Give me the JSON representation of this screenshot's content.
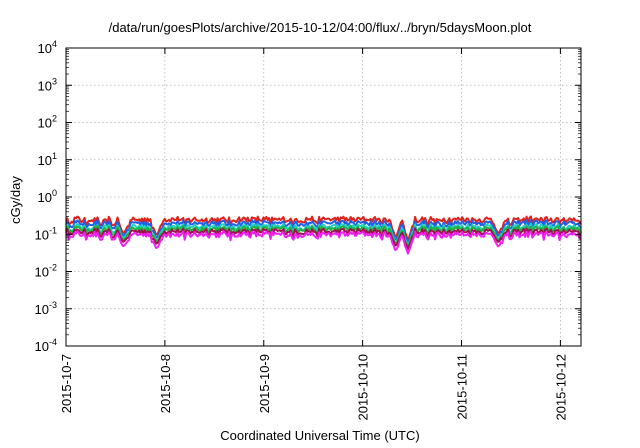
{
  "chart_data": {
    "type": "line",
    "title": "/data/run/goesPlots/archive/2015-10-12/04:00/flux/../bryn/5daysMoon.plot",
    "xlabel": "Coordinated Universal Time (UTC)",
    "ylabel": "cGy/day",
    "x_ticks": [
      "2015-10-7",
      "2015-10-8",
      "2015-10-9",
      "2015-10-10",
      "2015-10-11",
      "2015-10-12"
    ],
    "x_range": [
      "2015-10-07 00:00",
      "2015-10-12 05:00"
    ],
    "y_scale": "log",
    "y_ticks": [
      {
        "base": "10",
        "exp": "4"
      },
      {
        "base": "10",
        "exp": "3"
      },
      {
        "base": "10",
        "exp": "2"
      },
      {
        "base": "10",
        "exp": "1"
      },
      {
        "base": "10",
        "exp": "0"
      },
      {
        "base": "10",
        "exp": "-1"
      },
      {
        "base": "10",
        "exp": "-2"
      },
      {
        "base": "10",
        "exp": "-3"
      },
      {
        "base": "10",
        "exp": "-4"
      }
    ],
    "ylim": [
      0.0001,
      10000
    ],
    "grid": true,
    "series": [
      {
        "color": "#e0201b",
        "approx_value": 0.25
      },
      {
        "color": "#2060e8",
        "approx_value": 0.2
      },
      {
        "color": "#20d0c0",
        "approx_value": 0.16
      },
      {
        "color": "#20b040",
        "approx_value": 0.14
      },
      {
        "color": "#a01050",
        "approx_value": 0.12
      },
      {
        "color": "#f020f0",
        "approx_value": 0.1
      }
    ],
    "dips": [
      {
        "date": "2015-10-07 14:00",
        "min": 0.045
      },
      {
        "date": "2015-10-07 22:00",
        "min": 0.04
      },
      {
        "date": "2015-10-10 08:00",
        "min": 0.035
      },
      {
        "date": "2015-10-10 11:00",
        "min": 0.03
      },
      {
        "date": "2015-10-11 09:00",
        "min": 0.045
      }
    ]
  }
}
